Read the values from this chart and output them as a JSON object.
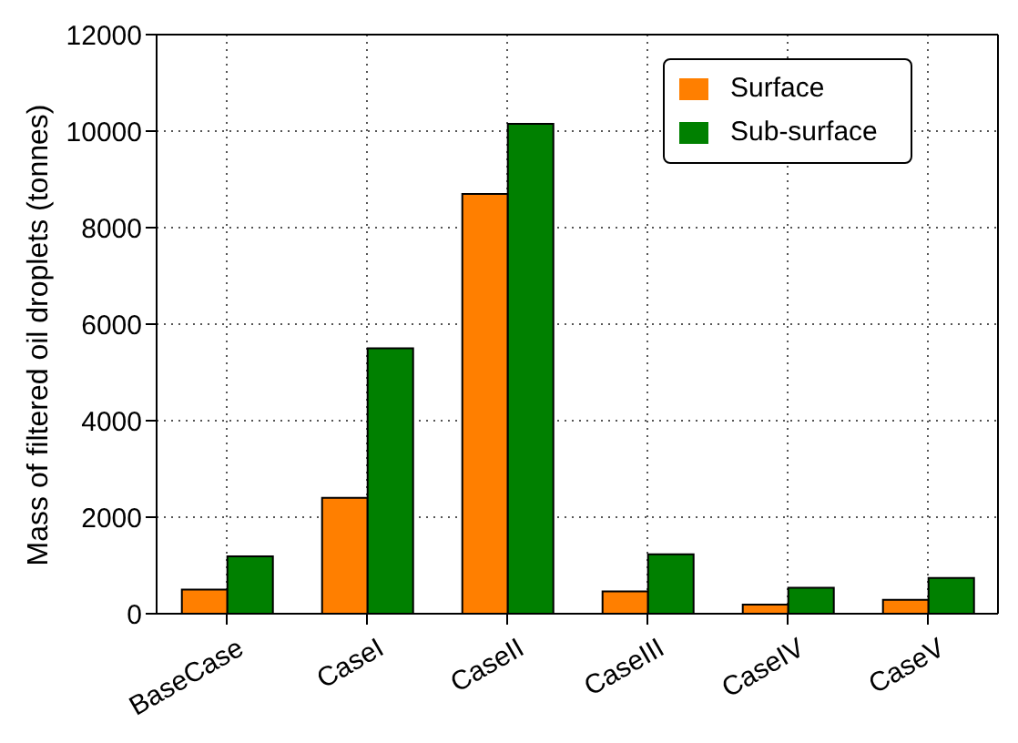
{
  "chart_data": {
    "type": "bar",
    "ylabel": "Mass of filtered oil droplets (tonnes)",
    "categories": [
      "BaseCase",
      "CaseI",
      "CaseII",
      "CaseIII",
      "CaseIV",
      "CaseV"
    ],
    "series": [
      {
        "name": "Surface",
        "color": "#ff7f00",
        "values": [
          500,
          2400,
          8700,
          460,
          190,
          290
        ]
      },
      {
        "name": "Sub-surface",
        "color": "#008000",
        "values": [
          1190,
          5500,
          10150,
          1230,
          540,
          740
        ]
      }
    ],
    "ylim": [
      0,
      12000
    ],
    "yticks": [
      0,
      2000,
      4000,
      6000,
      8000,
      10000,
      12000
    ],
    "grid": true,
    "legend": "top right"
  }
}
